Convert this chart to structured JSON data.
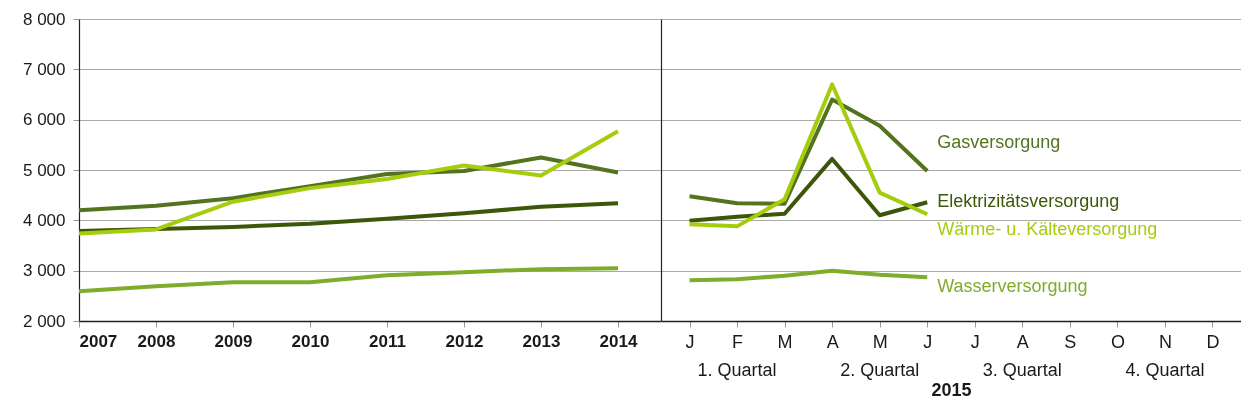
{
  "chart_data": [
    {
      "type": "line",
      "categories": [
        "2007",
        "2008",
        "2009",
        "2010",
        "2011",
        "2012",
        "2013",
        "2014"
      ],
      "series": [
        {
          "color": "#54731f",
          "values": [
            4200,
            4290,
            4440,
            4680,
            4920,
            4980,
            5250,
            4950
          ]
        },
        {
          "color": "#3d5708",
          "values": [
            3790,
            3830,
            3870,
            3930,
            4030,
            4140,
            4270,
            4340
          ]
        },
        {
          "color": "#a6cc0e",
          "values": [
            3740,
            3820,
            4370,
            4640,
            4820,
            5090,
            4890,
            5770
          ]
        },
        {
          "color": "#7fac2b",
          "values": [
            2590,
            2690,
            2770,
            2770,
            2910,
            2970,
            3030,
            3050
          ]
        }
      ],
      "ylim": [
        2000,
        8000
      ],
      "yticks": [
        {
          "value": 2000,
          "label": "2 000"
        },
        {
          "value": 3000,
          "label": "3 000"
        },
        {
          "value": 4000,
          "label": "4 000"
        },
        {
          "value": 5000,
          "label": "5 000"
        },
        {
          "value": 6000,
          "label": "6 000"
        },
        {
          "value": 7000,
          "label": "7 000"
        },
        {
          "value": 8000,
          "label": "8 000"
        }
      ],
      "grid": "y"
    },
    {
      "type": "line",
      "xlabel": "2015",
      "categories": [
        "J",
        "F",
        "M",
        "A",
        "M",
        "J",
        "J",
        "A",
        "S",
        "O",
        "N",
        "D"
      ],
      "series": [
        {
          "name": "Gasversorgung",
          "color": "#54731f",
          "values": [
            4480,
            4340,
            4330,
            6400,
            5880,
            4980,
            null,
            null,
            null,
            null,
            null,
            null
          ]
        },
        {
          "name": "Elektrizitätsversorgung",
          "color": "#3d5708",
          "values": [
            3990,
            4070,
            4130,
            5220,
            4100,
            4360,
            null,
            null,
            null,
            null,
            null,
            null
          ]
        },
        {
          "name": "Wärme- u. Kälteversorgung",
          "color": "#a6cc0e",
          "values": [
            3920,
            3880,
            4420,
            6700,
            4550,
            4120,
            null,
            null,
            null,
            null,
            null,
            null
          ]
        },
        {
          "name": "Wasserversorgung",
          "color": "#7fac2b",
          "values": [
            2810,
            2830,
            2900,
            3000,
            2920,
            2870,
            null,
            null,
            null,
            null,
            null,
            null
          ]
        }
      ],
      "annotations": [
        "1. Quartal",
        "2. Quartal",
        "3. Quartal",
        "4. Quartal"
      ],
      "ylim": [
        2000,
        8000
      ],
      "yticks": [
        2000,
        3000,
        4000,
        5000,
        6000,
        7000,
        8000
      ],
      "grid": "y",
      "tick_labels": "x"
    }
  ]
}
